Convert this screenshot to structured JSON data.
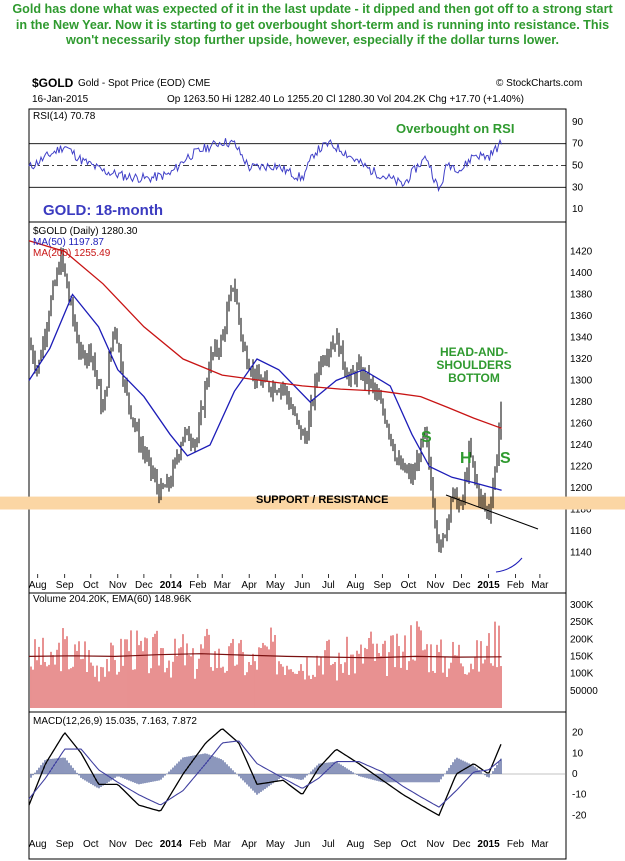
{
  "caption": "Gold has done what was expected of it in the last update - it dipped and then got off to a strong start in the New Year. Now it is starting to get overbought short-term and is running into resistance. This won't necessarily stop further upside, however, especially if the dollar turns lower.",
  "header": {
    "symbol": "$GOLD",
    "description": "Gold - Spot Price (EOD)  CME",
    "watermark": "© StockCharts.com",
    "date": "16-Jan-2015",
    "ohlc": "Op 1263.50  Hi 1282.40  Lo 1255.20  Cl 1280.30  Vol 204.2K  Chg +17.70 (+1.40%)"
  },
  "colors": {
    "price": "#000000",
    "ma50": "#1d1db8",
    "ma200": "#c81414",
    "support_band": "#fbd6a4",
    "annotation_text": "#2f9a2f",
    "chart_title": "#3b3bc0",
    "rsi_line": "#4040c8",
    "volume_bars": "#d94848",
    "macd_histogram": "#5a6aa0"
  },
  "chart_data": [
    {
      "type": "line",
      "panel": "rsi",
      "legend": "RSI(14) 70.78",
      "ylim": [
        0,
        100
      ],
      "y_ticks": [
        10,
        30,
        50,
        70,
        90
      ],
      "reference_lines": [
        30,
        50,
        70
      ],
      "annotation": "Overbought on RSI",
      "x": [
        "2013-07-22",
        "2013-08-15",
        "2013-09-01",
        "2013-09-20",
        "2013-10-15",
        "2013-11-10",
        "2013-12-05",
        "2013-12-31",
        "2014-01-20",
        "2014-02-10",
        "2014-03-01",
        "2014-03-15",
        "2014-04-01",
        "2014-05-01",
        "2014-06-01",
        "2014-06-15",
        "2014-07-01",
        "2014-07-15",
        "2014-08-01",
        "2014-08-20",
        "2014-09-10",
        "2014-09-25",
        "2014-10-10",
        "2014-10-22",
        "2014-11-05",
        "2014-11-15",
        "2014-12-01",
        "2014-12-15",
        "2015-01-01",
        "2015-01-16"
      ],
      "values": [
        48,
        60,
        68,
        55,
        45,
        40,
        38,
        42,
        58,
        66,
        72,
        70,
        48,
        50,
        38,
        62,
        70,
        65,
        55,
        45,
        38,
        32,
        48,
        58,
        26,
        52,
        46,
        60,
        58,
        70.78
      ]
    },
    {
      "type": "line",
      "panel": "price",
      "title": "GOLD: 18-month",
      "legend": [
        "$GOLD (Daily) 1280.30",
        "MA(50) 1197.87",
        "MA(200) 1255.49"
      ],
      "ylim": [
        1120,
        1440
      ],
      "y_ticks": [
        1140,
        1160,
        1180,
        1200,
        1220,
        1240,
        1260,
        1280,
        1300,
        1320,
        1340,
        1360,
        1380,
        1400,
        1420
      ],
      "x_ticks": [
        "Aug",
        "Sep",
        "Oct",
        "Nov",
        "Dec",
        "2014",
        "Feb",
        "Mar",
        "Apr",
        "May",
        "Jun",
        "Jul",
        "Aug",
        "Sep",
        "Oct",
        "Nov",
        "Dec",
        "2015",
        "Feb",
        "Mar"
      ],
      "support_resistance": [
        1180,
        1192
      ],
      "annotations": [
        "SUPPORT / RESISTANCE",
        "HEAD-AND-\nSHOULDERS\nBOTTOM",
        "S",
        "H",
        "S"
      ],
      "series": [
        {
          "name": "$GOLD (Daily) 1280.30",
          "x": [
            "2013-07-22",
            "2013-08-01",
            "2013-08-15",
            "2013-08-28",
            "2013-09-10",
            "2013-09-20",
            "2013-10-01",
            "2013-10-15",
            "2013-10-28",
            "2013-11-10",
            "2013-11-25",
            "2013-12-05",
            "2013-12-19",
            "2013-12-31",
            "2014-01-15",
            "2014-01-31",
            "2014-02-15",
            "2014-02-28",
            "2014-03-14",
            "2014-03-25",
            "2014-04-10",
            "2014-04-25",
            "2014-05-10",
            "2014-05-28",
            "2014-06-05",
            "2014-06-20",
            "2014-07-01",
            "2014-07-10",
            "2014-07-25",
            "2014-08-05",
            "2014-08-20",
            "2014-09-05",
            "2014-09-20",
            "2014-10-06",
            "2014-10-20",
            "2014-11-01",
            "2014-11-07",
            "2014-11-20",
            "2014-12-01",
            "2014-12-10",
            "2014-12-20",
            "2015-01-01",
            "2015-01-10",
            "2015-01-16"
          ],
          "values": [
            1335,
            1310,
            1370,
            1415,
            1360,
            1320,
            1330,
            1270,
            1355,
            1290,
            1245,
            1225,
            1195,
            1205,
            1250,
            1245,
            1320,
            1335,
            1392,
            1330,
            1300,
            1295,
            1295,
            1255,
            1245,
            1315,
            1330,
            1340,
            1300,
            1310,
            1295,
            1265,
            1220,
            1210,
            1250,
            1170,
            1140,
            1195,
            1180,
            1235,
            1195,
            1175,
            1225,
            1280.3
          ]
        },
        {
          "name": "MA(50) 1197.87",
          "x": [
            "2013-07-22",
            "2013-08-15",
            "2013-09-10",
            "2013-10-10",
            "2013-11-01",
            "2013-12-01",
            "2013-12-31",
            "2014-01-20",
            "2014-02-15",
            "2014-03-15",
            "2014-04-10",
            "2014-05-05",
            "2014-06-10",
            "2014-07-10",
            "2014-08-10",
            "2014-09-10",
            "2014-10-05",
            "2014-10-25",
            "2014-11-20",
            "2014-12-15",
            "2015-01-16"
          ],
          "values": [
            1300,
            1330,
            1380,
            1350,
            1310,
            1285,
            1250,
            1230,
            1240,
            1290,
            1320,
            1310,
            1280,
            1300,
            1310,
            1295,
            1250,
            1220,
            1210,
            1205,
            1197.87
          ]
        },
        {
          "name": "MA(200) 1255.49",
          "x": [
            "2013-07-22",
            "2013-09-01",
            "2013-10-15",
            "2013-12-01",
            "2014-01-15",
            "2014-03-01",
            "2014-04-15",
            "2014-06-01",
            "2014-07-15",
            "2014-09-01",
            "2014-10-15",
            "2014-11-15",
            "2014-12-15",
            "2015-01-16"
          ],
          "values": [
            1430,
            1420,
            1390,
            1350,
            1320,
            1305,
            1300,
            1295,
            1292,
            1290,
            1285,
            1275,
            1265,
            1255.49
          ]
        }
      ]
    },
    {
      "type": "bar",
      "panel": "volume",
      "legend": "Volume 204.20K, EMA(60) 148.96K",
      "y_ticks": [
        "50000",
        "100K",
        "150K",
        "200K",
        "250K",
        "300K"
      ],
      "ylim": [
        0,
        320000
      ],
      "values": [
        135000,
        160000,
        120000,
        180000,
        140000,
        170000,
        110000,
        150000,
        130000,
        195000,
        160000,
        145000,
        175000,
        140000,
        165000,
        125000,
        180000,
        150000,
        135000,
        160000,
        120000,
        150000,
        170000,
        140000,
        155000,
        130000,
        145000,
        165000,
        120000,
        150000,
        140000,
        180000,
        135000,
        160000,
        150000,
        220000,
        175000,
        155000,
        140000,
        160000,
        150000,
        145000,
        180000,
        204200
      ],
      "ema": [
        150000,
        152000,
        150000,
        155000,
        158000,
        154000,
        150000,
        148000,
        146000,
        150000,
        148000,
        148960
      ]
    },
    {
      "type": "line",
      "panel": "macd",
      "legend": "MACD(12,26,9) 15.035, 7.163, 7.872",
      "ylim": [
        -28,
        28
      ],
      "y_ticks": [
        -20,
        -10,
        0,
        10,
        20
      ],
      "x": [
        "2013-07-22",
        "2013-08-10",
        "2013-09-01",
        "2013-09-20",
        "2013-10-10",
        "2013-11-01",
        "2013-11-25",
        "2013-12-20",
        "2014-01-15",
        "2014-02-10",
        "2014-03-01",
        "2014-03-20",
        "2014-04-10",
        "2014-05-10",
        "2014-06-01",
        "2014-06-20",
        "2014-07-10",
        "2014-08-05",
        "2014-09-01",
        "2014-09-25",
        "2014-10-15",
        "2014-11-05",
        "2014-11-25",
        "2014-12-15",
        "2015-01-01",
        "2015-01-16"
      ],
      "series": [
        {
          "name": "MACD",
          "values": [
            -15,
            5,
            20,
            10,
            -5,
            -5,
            -15,
            -18,
            0,
            15,
            22,
            15,
            -5,
            -3,
            -10,
            3,
            12,
            5,
            -3,
            -10,
            -15,
            -20,
            0,
            5,
            0,
            15.035
          ]
        },
        {
          "name": "Signal",
          "values": [
            -12,
            -2,
            12,
            12,
            2,
            -4,
            -10,
            -15,
            -8,
            5,
            15,
            16,
            5,
            -2,
            -7,
            -2,
            6,
            6,
            1,
            -6,
            -11,
            -16,
            -8,
            1,
            2,
            7.163
          ]
        }
      ]
    }
  ]
}
